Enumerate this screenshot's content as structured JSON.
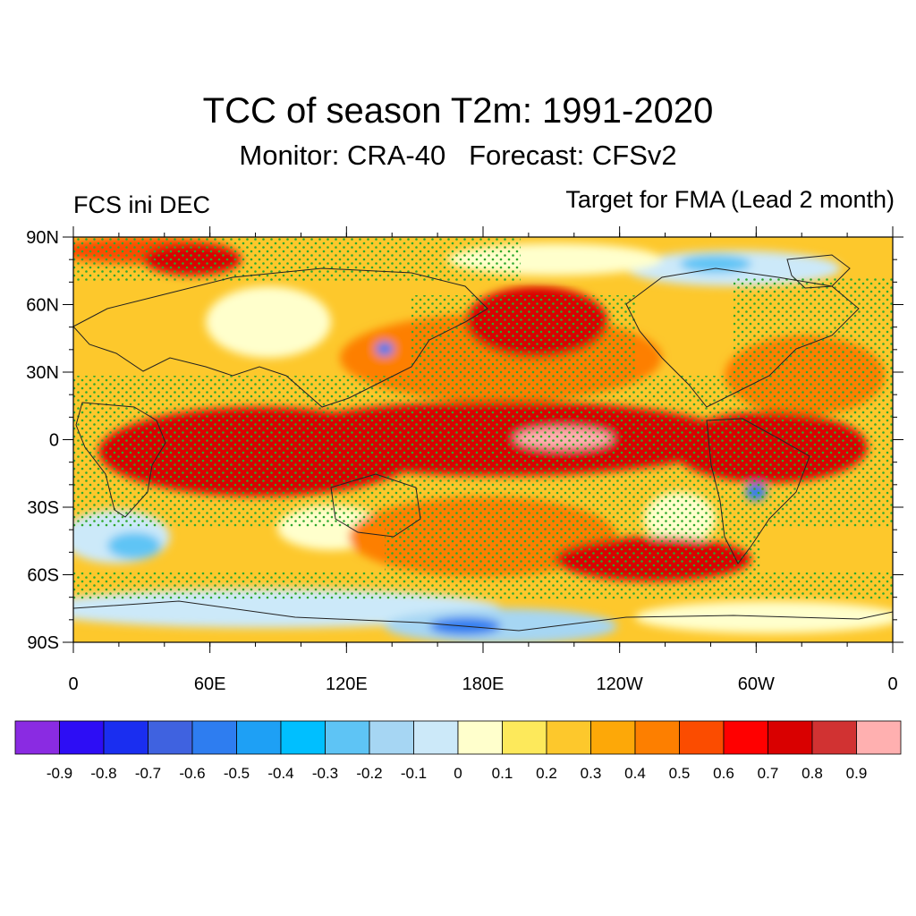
{
  "header": {
    "title": "TCC of season T2m: 1991-2020",
    "subtitle": "Monitor: CRA-40   Forecast: CFSv2",
    "left_label": "FCS ini DEC",
    "right_label": "Target for FMA (Lead 2 month)"
  },
  "map": {
    "projection": "cylindrical-equidistant",
    "lon_range": [
      0,
      360
    ],
    "lat_range": [
      -90,
      90
    ],
    "lat_labels": [
      "90N",
      "60N",
      "30N",
      "0",
      "30S",
      "60S",
      "90S"
    ],
    "lat_values": [
      90,
      60,
      30,
      0,
      -30,
      -60,
      -90
    ],
    "lon_labels": [
      "0",
      "60E",
      "120E",
      "180E",
      "120W",
      "60W",
      "0"
    ],
    "lon_values": [
      0,
      60,
      120,
      180,
      240,
      300,
      360
    ],
    "stipple_color": "#2ea82e",
    "coastline_color": "#222222"
  },
  "colorbar": {
    "colors": [
      "#8a2be2",
      "#2d0df5",
      "#1a2ef0",
      "#3f62e0",
      "#2e7df0",
      "#1ea0f5",
      "#00bfff",
      "#5ec4f5",
      "#a6d6f3",
      "#cce9f9",
      "#ffffcc",
      "#fde95b",
      "#fdc82c",
      "#fda808",
      "#fd7f00",
      "#fb4c00",
      "#ff0000",
      "#d90000",
      "#d13232",
      "#ffb0b0"
    ],
    "labels": [
      "-0.9",
      "-0.8",
      "-0.7",
      "-0.6",
      "-0.5",
      "-0.4",
      "-0.3",
      "-0.2",
      "-0.1",
      "0",
      "0.1",
      "0.2",
      "0.3",
      "0.4",
      "0.5",
      "0.6",
      "0.7",
      "0.8",
      "0.9"
    ]
  }
}
